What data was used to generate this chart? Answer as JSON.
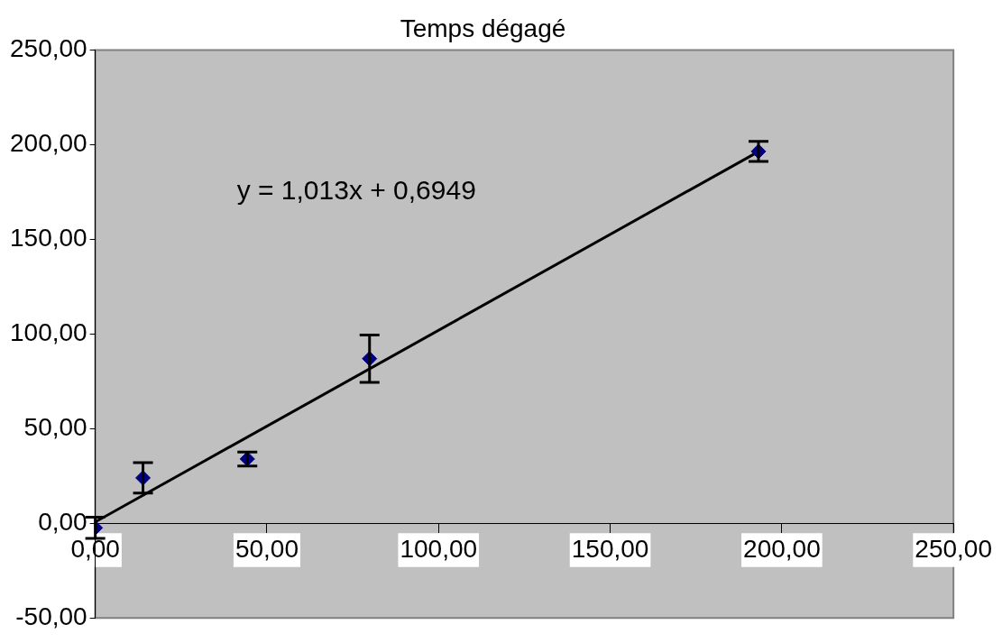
{
  "chart_data": {
    "type": "scatter",
    "title": "Temps dégagé",
    "xlim": [
      0,
      250
    ],
    "ylim": [
      -50,
      250
    ],
    "xticks": [
      {
        "value": 0,
        "label": "0,00"
      },
      {
        "value": 50,
        "label": "50,00"
      },
      {
        "value": 100,
        "label": "100,00"
      },
      {
        "value": 150,
        "label": "150,00"
      },
      {
        "value": 200,
        "label": "200,00"
      },
      {
        "value": 250,
        "label": "250,00"
      }
    ],
    "yticks": [
      {
        "value": -50,
        "label": "-50,00"
      },
      {
        "value": 0,
        "label": "0,00"
      },
      {
        "value": 50,
        "label": "50,00"
      },
      {
        "value": 100,
        "label": "100,00"
      },
      {
        "value": 150,
        "label": "150,00"
      },
      {
        "value": 200,
        "label": "200,00"
      },
      {
        "value": 250,
        "label": "250,00"
      }
    ],
    "grid": false,
    "legend": false,
    "marker": "diamond",
    "series": [
      {
        "color": "#000080",
        "x": [
          0,
          13.9,
          44.3,
          79.9,
          193.2
        ],
        "values": [
          -2.4,
          24,
          34,
          87,
          196.5
        ],
        "errors": [
          5.6,
          8,
          3.7,
          12.5,
          5.3
        ]
      },
      {
        "type": "line",
        "color": "#000000",
        "x": [
          0,
          193.2
        ],
        "values": [
          0.7,
          196.4
        ],
        "marker": "none",
        "line_style": "solid"
      }
    ],
    "annotations": [
      "y = 1,013x + 0,6949"
    ]
  }
}
